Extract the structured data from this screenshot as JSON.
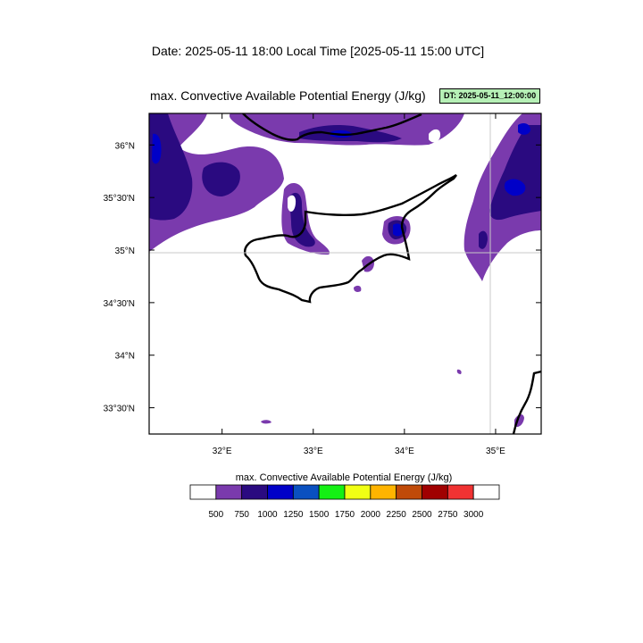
{
  "header": {
    "date_line": "Date: 2025-05-11  18:00 Local Time [2025-05-11  15:00 UTC]",
    "map_title": "max. Convective Available Potential Energy   (J/kg)",
    "dt_badge": "DT: 2025-05-11_12:00:00"
  },
  "map": {
    "lon_range": [
      31.2,
      35.5
    ],
    "lat_range": [
      33.25,
      36.3
    ],
    "x_ticks": [
      "32°E",
      "33°E",
      "34°E",
      "35°E"
    ],
    "x_tick_values": [
      32,
      33,
      34,
      35
    ],
    "y_ticks": [
      "36°N",
      "35°30'N",
      "35°N",
      "34°30'N",
      "34°N",
      "33°30'N"
    ],
    "y_tick_values": [
      36,
      35.5,
      35,
      34.5,
      34,
      33.5
    ],
    "grid_lines": {
      "lon": [
        35
      ],
      "lat": [
        35
      ]
    }
  },
  "legend": {
    "title": "max. Convective Available Potential Energy  (J/kg)",
    "labels": [
      "500",
      "750",
      "1000",
      "1250",
      "1500",
      "1750",
      "2000",
      "2250",
      "2500",
      "2750",
      "3000"
    ],
    "colors": [
      "#ffffff",
      "#7a3aad",
      "#2a0a80",
      "#0000c8",
      "#0a50c0",
      "#14f014",
      "#f0ff14",
      "#ffb400",
      "#c04a08",
      "#a00000",
      "#f03232",
      "#ffffff"
    ]
  },
  "colors": {
    "cape_500_750": "#7a3aad",
    "cape_750_1000": "#2a0a80",
    "cape_1000_1250": "#0000c8",
    "coastline": "#000000",
    "grid": "#c8c8c8"
  }
}
